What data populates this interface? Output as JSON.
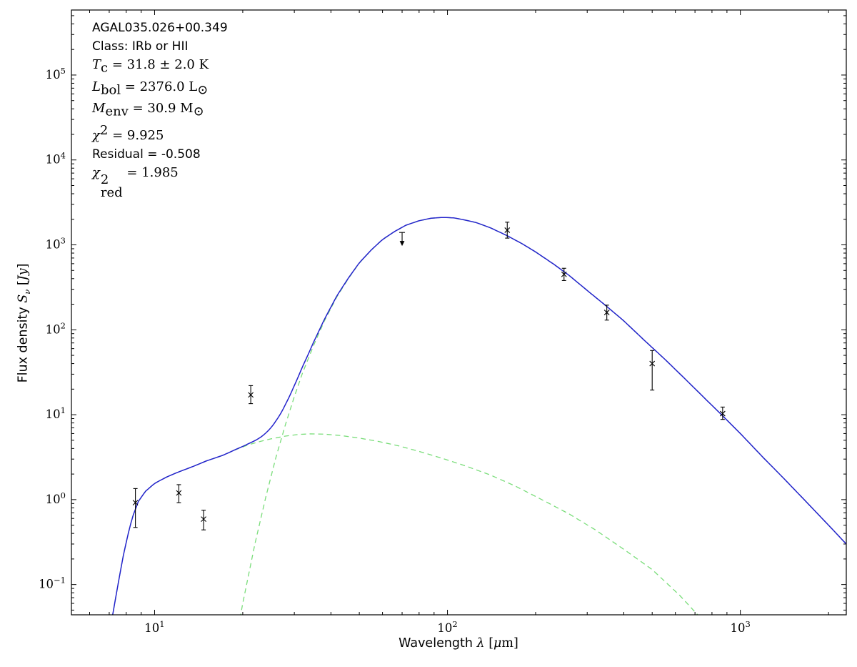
{
  "annotation": {
    "lines": [
      {
        "font": "sans",
        "segments": [
          {
            "t": "AGAL035.026+00.349"
          }
        ]
      },
      {
        "font": "sans",
        "segments": [
          {
            "t": "Class: IRb or HII"
          }
        ]
      },
      {
        "font": "serif",
        "segments": [
          {
            "t": "T",
            "i": true
          },
          {
            "t": "c",
            "v": "sub"
          },
          {
            "t": " = 31.8 ± 2.0 K"
          }
        ]
      },
      {
        "font": "serif",
        "segments": [
          {
            "t": "L",
            "i": true
          },
          {
            "t": "bol",
            "v": "sub"
          },
          {
            "t": " = 2376.0 L"
          },
          {
            "t": "⊙",
            "v": "sub"
          }
        ]
      },
      {
        "font": "serif",
        "segments": [
          {
            "t": "M",
            "i": true
          },
          {
            "t": "env",
            "v": "sub"
          },
          {
            "t": " = 30.9 M"
          },
          {
            "t": "⊙",
            "v": "sub"
          }
        ]
      },
      {
        "font": "serif",
        "segments": [
          {
            "t": "χ",
            "i": true
          },
          {
            "t": "2",
            "v": "sup"
          },
          {
            "t": " = 9.925"
          }
        ]
      },
      {
        "font": "sans",
        "segments": [
          {
            "t": "Residual = -0.508"
          }
        ]
      },
      {
        "font": "serif",
        "segments": [
          {
            "t": "χ",
            "i": true
          },
          {
            "top": "2",
            "bottom": "red"
          },
          {
            "t": " = 1.985"
          }
        ]
      }
    ]
  },
  "chart_data": {
    "type": "line",
    "title": "",
    "xlabel": "Wavelength λ [μm]",
    "ylabel": "Flux density Sν [Jy]",
    "xscale": "log",
    "yscale": "log",
    "xlim": [
      5.2,
      2300
    ],
    "ylim": [
      0.044,
      583000
    ],
    "grid": false,
    "legend": "none",
    "x_major_ticks": [
      10,
      100,
      1000
    ],
    "y_major_ticks": [
      0.1,
      1,
      10,
      100,
      1000,
      10000,
      100000
    ],
    "colors": {
      "background": "#ffffff",
      "frame": "#000000",
      "model_total": "#2222cc",
      "model_components": "#79dd79",
      "data": "#000000"
    },
    "xlabel_segments": [
      {
        "t": "Wavelength ",
        "f": "sans"
      },
      {
        "t": "λ",
        "f": "serif",
        "i": true
      },
      {
        "t": " [",
        "f": "serif"
      },
      {
        "t": "μ",
        "f": "serif",
        "i": true
      },
      {
        "t": "m]",
        "f": "serif"
      }
    ],
    "ylabel_segments": [
      {
        "t": "Flux density ",
        "f": "sans"
      },
      {
        "t": "S",
        "f": "serif",
        "i": true
      },
      {
        "t": "ν",
        "f": "serif",
        "i": true,
        "v": "sub"
      },
      {
        "t": " [",
        "f": "serif"
      },
      {
        "t": "Jy",
        "f": "serif",
        "i": true
      },
      {
        "t": "]",
        "f": "serif"
      }
    ],
    "series": [
      {
        "name": "warm-component",
        "role": "component",
        "linestyle": "dashed",
        "x": [
          6.9,
          7.2,
          7.5,
          7.8,
          8.1,
          8.4,
          8.8,
          9.3,
          10,
          11,
          12,
          13.5,
          15,
          17,
          19,
          21,
          23,
          25,
          28,
          31,
          34,
          38,
          43,
          50,
          58,
          68,
          80,
          95,
          115,
          140,
          170,
          210,
          260,
          320,
          400,
          500,
          620,
          760
        ],
        "y": [
          0.02,
          0.045,
          0.1,
          0.21,
          0.38,
          0.62,
          0.95,
          1.25,
          1.55,
          1.85,
          2.1,
          2.45,
          2.85,
          3.3,
          3.9,
          4.45,
          4.85,
          5.2,
          5.6,
          5.85,
          5.95,
          5.9,
          5.7,
          5.3,
          4.85,
          4.3,
          3.7,
          3.1,
          2.5,
          1.95,
          1.45,
          1.0,
          0.68,
          0.44,
          0.26,
          0.15,
          0.075,
          0.035
        ]
      },
      {
        "name": "cold-component",
        "role": "component",
        "linestyle": "dashed",
        "x": [
          18,
          20,
          22,
          24,
          26,
          28,
          30,
          32,
          35,
          38,
          42,
          46,
          50,
          55,
          60,
          66,
          72,
          80,
          88,
          96,
          105,
          115,
          125,
          140,
          160,
          180,
          200,
          230,
          260,
          300,
          350,
          400,
          470,
          550,
          650,
          760,
          870,
          1000,
          1200,
          1400,
          1700,
          2000,
          2300
        ],
        "y": [
          0.008,
          0.06,
          0.3,
          1.09,
          3.2,
          7.7,
          16.3,
          31,
          67,
          127,
          248,
          407,
          610,
          871,
          1150,
          1434,
          1694,
          1920,
          2057,
          2100,
          2080,
          1954,
          1833,
          1590,
          1280,
          1029,
          823,
          595,
          437,
          290,
          188,
          127,
          75,
          45.5,
          26,
          15.3,
          9.7,
          6.0,
          3.1,
          1.81,
          0.9,
          0.5,
          0.3
        ]
      },
      {
        "name": "total-model",
        "role": "total",
        "linestyle": "solid",
        "derived": "sum-of-components"
      }
    ],
    "points": [
      {
        "x": 8.6,
        "y": 0.92,
        "ylo": 0.47,
        "yhi": 1.35
      },
      {
        "x": 12.1,
        "y": 1.2,
        "ylo": 0.92,
        "yhi": 1.5
      },
      {
        "x": 14.7,
        "y": 0.59,
        "ylo": 0.44,
        "yhi": 0.75
      },
      {
        "x": 21.3,
        "y": 17.1,
        "ylo": 13.5,
        "yhi": 22.0
      },
      {
        "x": 70.0,
        "y": 1400,
        "limit": "upper"
      },
      {
        "x": 160.0,
        "y": 1490,
        "ylo": 1200,
        "yhi": 1850
      },
      {
        "x": 250.0,
        "y": 450,
        "ylo": 380,
        "yhi": 530
      },
      {
        "x": 350.0,
        "y": 160,
        "ylo": 130,
        "yhi": 195
      },
      {
        "x": 500.0,
        "y": 40,
        "ylo": 19.5,
        "yhi": 57
      },
      {
        "x": 870.0,
        "y": 10.3,
        "ylo": 8.8,
        "yhi": 12.3
      }
    ]
  }
}
